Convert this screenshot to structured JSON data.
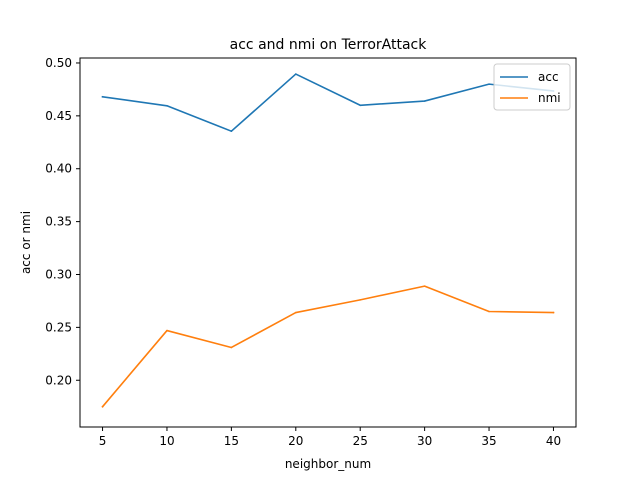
{
  "chart_data": {
    "type": "line",
    "title": "acc and nmi on TerrorAttack",
    "xlabel": "neighbor_num",
    "ylabel": "acc or nmi",
    "x": [
      5,
      10,
      15,
      20,
      25,
      30,
      35,
      40
    ],
    "xlim": [
      3.25,
      41.75
    ],
    "ylim": [
      0.1558,
      0.5047
    ],
    "xticks": [
      5,
      10,
      15,
      20,
      25,
      30,
      35,
      40
    ],
    "yticks": [
      0.2,
      0.25,
      0.3,
      0.35,
      0.4,
      0.45,
      0.5
    ],
    "ytick_labels": [
      "0.20",
      "0.25",
      "0.30",
      "0.35",
      "0.40",
      "0.45",
      "0.50"
    ],
    "grid": false,
    "legend_position": "top-right",
    "series": [
      {
        "name": "acc",
        "color": "#1f77b4",
        "values": [
          0.468,
          0.4595,
          0.4355,
          0.4895,
          0.46,
          0.464,
          0.48,
          0.4735
        ]
      },
      {
        "name": "nmi",
        "color": "#ff7f0e",
        "values": [
          0.175,
          0.247,
          0.231,
          0.264,
          0.276,
          0.289,
          0.265,
          0.264
        ]
      }
    ]
  }
}
